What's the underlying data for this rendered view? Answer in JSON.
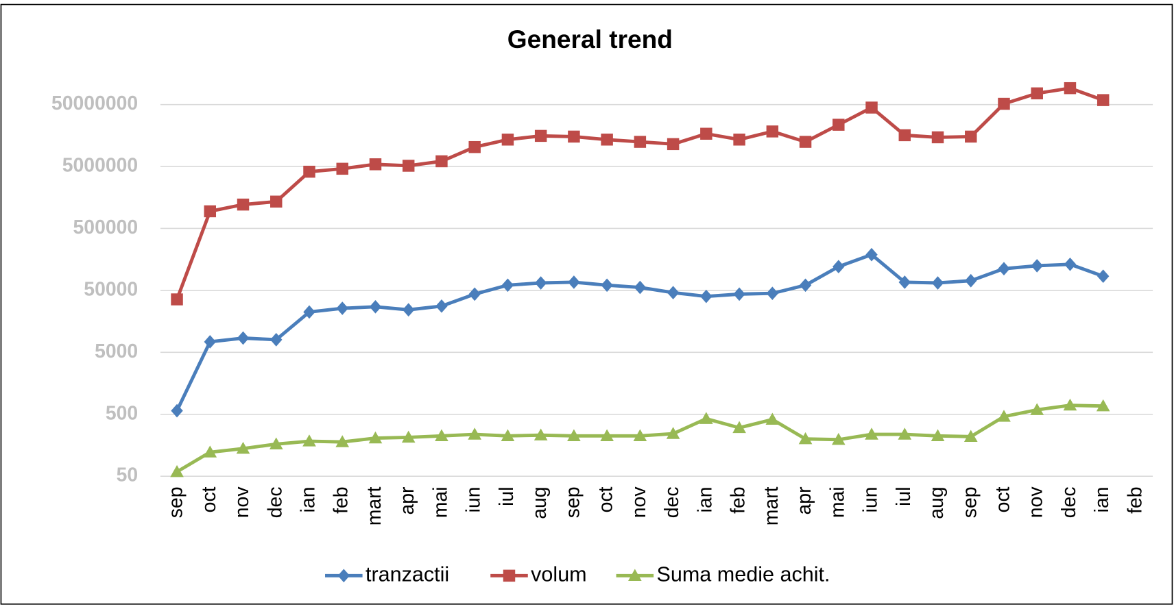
{
  "chart_data": {
    "type": "line",
    "title": "General trend",
    "categories": [
      "sep",
      "oct",
      "nov",
      "dec",
      "ian",
      "feb",
      "mart",
      "apr",
      "mai",
      "iun",
      "iul",
      "aug",
      "sep",
      "oct",
      "nov",
      "dec",
      "ian",
      "feb",
      "mart",
      "apr",
      "mai",
      "iun",
      "iul",
      "aug",
      "sep",
      "oct",
      "nov",
      "dec",
      "ian",
      "feb"
    ],
    "series": [
      {
        "name": "tranzactii",
        "color": "#4a7ebb",
        "marker": "diamond",
        "values": [
          570,
          7400,
          8500,
          8000,
          22400,
          25700,
          27200,
          24300,
          27900,
          43500,
          60700,
          66000,
          67800,
          60700,
          55800,
          46000,
          40000,
          43500,
          44800,
          60700,
          121000,
          189000,
          67800,
          66000,
          71700,
          112000,
          125000,
          132000,
          84700,
          null
        ]
      },
      {
        "name": "volum",
        "color": "#be4b48",
        "marker": "square",
        "values": [
          35800,
          946000,
          1215000,
          1357000,
          4120000,
          4600000,
          5430000,
          5140000,
          6070000,
          10300000,
          13600000,
          15600000,
          15200000,
          13600000,
          12500000,
          11500000,
          16900000,
          13600000,
          18400000,
          12500000,
          23600000,
          44700000,
          16000000,
          14800000,
          15200000,
          51400000,
          75800000,
          92000000,
          59000000,
          null
        ]
      },
      {
        "name": "Suma medie achit.",
        "color": "#98b954",
        "marker": "triangle",
        "values": [
          59,
          122,
          140,
          165,
          184,
          179,
          206,
          212,
          224,
          237,
          224,
          230,
          224,
          224,
          224,
          243,
          424,
          303,
          412,
          200,
          195,
          237,
          237,
          224,
          218,
          460,
          590,
          698,
          679,
          null
        ]
      }
    ],
    "log_scale": true,
    "ylim": [
      50,
      500000000
    ],
    "yticks": [
      50,
      500,
      5000,
      50000,
      500000,
      5000000,
      50000000
    ],
    "grid": true,
    "legend": "bottom"
  }
}
